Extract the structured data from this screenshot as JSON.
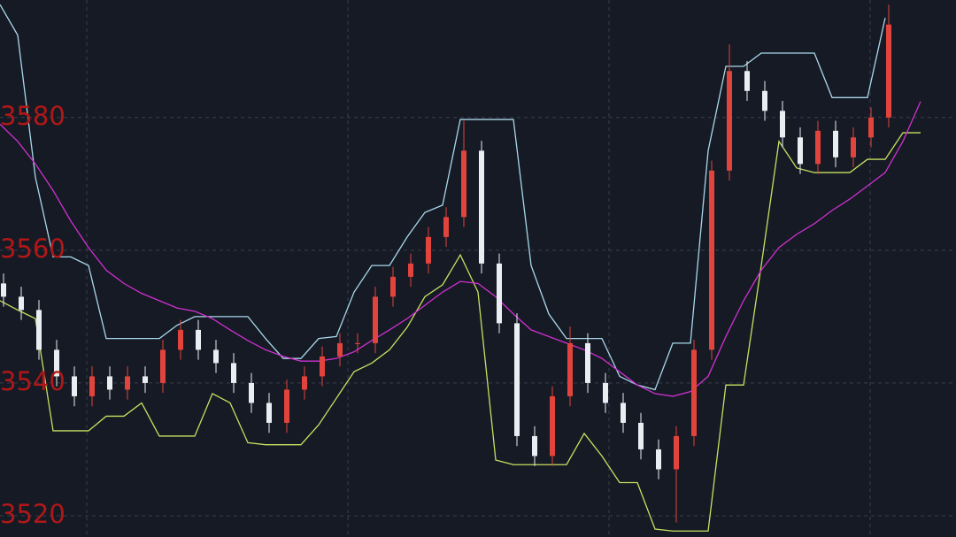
{
  "chart_data": {
    "type": "candlestick",
    "ylim": [
      3516.8,
      3597.7
    ],
    "yticks": [
      3520,
      3540,
      3560,
      3580
    ],
    "grid": true,
    "up_color": "#e0443c",
    "down_color": "#e8eef2",
    "candles": {
      "open": [
        3555,
        3553,
        3551,
        3545,
        3541,
        3538,
        3541,
        3539,
        3541,
        3540,
        3545,
        3548,
        3545,
        3543,
        3540,
        3537,
        3534,
        3539,
        3541,
        3544,
        3546,
        3546,
        3553,
        3556,
        3558,
        3562,
        3565,
        3575,
        3558,
        3549,
        3532,
        3529,
        3538,
        3546,
        3540,
        3537,
        3534,
        3530,
        3527,
        3532,
        3545,
        3572,
        3587,
        3584,
        3581,
        3577,
        3573,
        3578,
        3574,
        3577,
        3580
      ],
      "high": [
        3556.5,
        3554.5,
        3552.5,
        3546.5,
        3542.5,
        3542.5,
        3542.5,
        3542.5,
        3542.5,
        3546.5,
        3549.5,
        3549.5,
        3546.5,
        3544.5,
        3541.5,
        3538.5,
        3540.5,
        3542.5,
        3545.5,
        3547.5,
        3547.5,
        3554.5,
        3557.5,
        3559.5,
        3563.5,
        3566.5,
        3579.5,
        3576.5,
        3559.5,
        3550.5,
        3533.5,
        3539.5,
        3548.5,
        3547.5,
        3541.5,
        3538.5,
        3535.5,
        3531.5,
        3533.5,
        3546.5,
        3573.5,
        3591,
        3588.5,
        3585.5,
        3582.5,
        3578.5,
        3579.5,
        3579.5,
        3578.5,
        3581.5,
        3597
      ],
      "low": [
        3551.5,
        3549.5,
        3543.5,
        3539.5,
        3536.5,
        3536.5,
        3537.5,
        3537.5,
        3538.5,
        3538.5,
        3543.5,
        3543.5,
        3541.5,
        3538.5,
        3535.5,
        3532.5,
        3532.5,
        3537.5,
        3539.5,
        3542.5,
        3544.5,
        3544.5,
        3551.5,
        3554.5,
        3556.5,
        3560.5,
        3563.5,
        3556.5,
        3547.5,
        3530.5,
        3527.5,
        3527.5,
        3536.5,
        3538.5,
        3535.5,
        3532.5,
        3528.5,
        3525.5,
        3519,
        3530.5,
        3543.5,
        3570.5,
        3582.5,
        3579.5,
        3575.5,
        3571.5,
        3571.5,
        3572.5,
        3572.5,
        3575.5,
        3578.5
      ],
      "close": [
        3553,
        3551,
        3545,
        3541,
        3538,
        3541,
        3539,
        3541,
        3540,
        3545,
        3548,
        3545,
        3543,
        3540,
        3537,
        3534,
        3539,
        3541,
        3544,
        3546,
        3546,
        3553,
        3556,
        3558,
        3562,
        3565,
        3575,
        3558,
        3549,
        3532,
        3529,
        3538,
        3546,
        3540,
        3537,
        3534,
        3530,
        3527,
        3532,
        3545,
        3572,
        3587,
        3584,
        3581,
        3577,
        3573,
        3578,
        3574,
        3577,
        3580,
        3594
      ]
    },
    "series": [
      {
        "color": "#a8d8ea",
        "values": [
          3597,
          3592.4,
          3571,
          3559,
          3559,
          3557.7,
          3546.7,
          3546.7,
          3546.7,
          3546.7,
          3548.7,
          3550,
          3550,
          3550,
          3550,
          3546.7,
          3543.7,
          3543.7,
          3546.7,
          3547,
          3553.7,
          3557.7,
          3557.7,
          3562,
          3565.7,
          3566.8,
          3579.7,
          3579.7,
          3579.7,
          3579.7,
          3557.7,
          3550.4,
          3546.7,
          3546.7,
          3546.7,
          3541,
          3539.7,
          3539,
          3546,
          3546,
          3575,
          3587.7,
          3587.7,
          3589.7,
          3589.7,
          3589.7,
          3589.7,
          3583,
          3583,
          3583,
          3595,
          null,
          null
        ]
      },
      {
        "color": "#c8e060",
        "values": [
          3552.4,
          3551,
          3549.7,
          3532.8,
          3532.8,
          3532.8,
          3535,
          3535,
          3537,
          3532,
          3532,
          3532,
          3538.4,
          3537,
          3531,
          3530.7,
          3530.7,
          3530.7,
          3533.7,
          3537.7,
          3541.7,
          3543,
          3545,
          3548.4,
          3553,
          3554.8,
          3559.3,
          3553.7,
          3528.4,
          3527.7,
          3527.7,
          3527.7,
          3527.7,
          3532.4,
          3529,
          3525,
          3525,
          3518,
          3517.7,
          3517.7,
          3517.7,
          3539.7,
          3539.7,
          3557.7,
          3576.4,
          3572.4,
          3571.7,
          3571.7,
          3571.7,
          3573.7,
          3573.7,
          3577.7,
          3577.7
        ]
      },
      {
        "color": "#d030d0",
        "values": [
          3579,
          3576.4,
          3573,
          3569,
          3564.4,
          3560.4,
          3557,
          3555,
          3553.5,
          3552.4,
          3551.3,
          3550.8,
          3549.7,
          3548,
          3546.4,
          3545,
          3544,
          3543.3,
          3543.3,
          3543.7,
          3544.7,
          3546.4,
          3548,
          3549.7,
          3551.7,
          3553.7,
          3555.3,
          3555,
          3553,
          3550.4,
          3548,
          3547,
          3546,
          3545,
          3543.7,
          3541.7,
          3539.7,
          3538.4,
          3538,
          3538.7,
          3541,
          3547,
          3552.4,
          3557,
          3560.4,
          3562.4,
          3564,
          3566,
          3567.7,
          3569.7,
          3571.7,
          3576.4,
          3582.4
        ]
      }
    ]
  }
}
